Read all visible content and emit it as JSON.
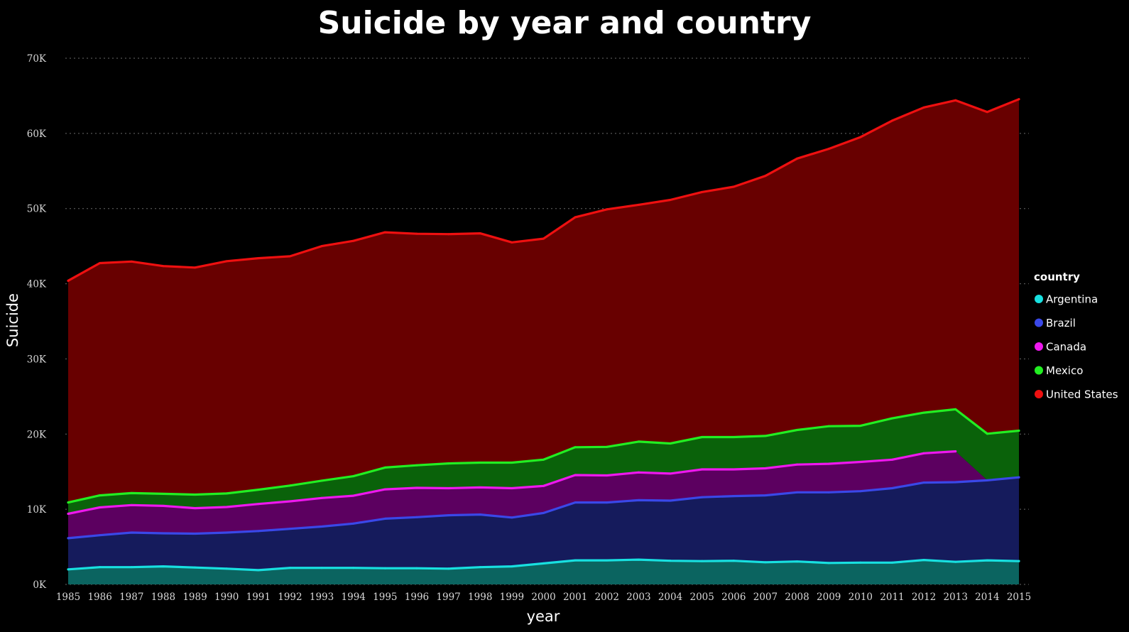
{
  "chart_data": {
    "type": "area",
    "stacked": true,
    "title": "Suicide by year and country",
    "xlabel": "year",
    "ylabel": "Suicide",
    "ylim": [
      0,
      70000
    ],
    "y_ticks": [
      0,
      10000,
      20000,
      30000,
      40000,
      50000,
      60000,
      70000
    ],
    "y_tick_labels": [
      "0K",
      "10K",
      "20K",
      "30K",
      "40K",
      "50K",
      "60K",
      "70K"
    ],
    "grid": true,
    "legend_title": "country",
    "legend_position": "right",
    "x": [
      "1985",
      "1986",
      "1987",
      "1988",
      "1989",
      "1990",
      "1991",
      "1992",
      "1993",
      "1994",
      "1995",
      "1996",
      "1997",
      "1998",
      "1999",
      "2000",
      "2001",
      "2002",
      "2003",
      "2004",
      "2005",
      "2006",
      "2007",
      "2008",
      "2009",
      "2010",
      "2011",
      "2012",
      "2013",
      "2014",
      "2015"
    ],
    "series": [
      {
        "name": "Argentina",
        "line_color": "#18e0e0",
        "fill_color": "#0b6460",
        "values": [
          2000,
          2300,
          2300,
          2400,
          2250,
          2100,
          1900,
          2200,
          2200,
          2200,
          2150,
          2150,
          2100,
          2300,
          2400,
          2800,
          3200,
          3200,
          3300,
          3150,
          3100,
          3150,
          2950,
          3050,
          2850,
          2900,
          2900,
          3250,
          3000,
          3200,
          3100
        ]
      },
      {
        "name": "Brazil",
        "line_color": "#3a48e8",
        "fill_color": "#151b5c",
        "values": [
          4150,
          4250,
          4600,
          4400,
          4500,
          4800,
          5200,
          5200,
          5500,
          5900,
          6600,
          6800,
          7100,
          7000,
          6500,
          6700,
          7700,
          7700,
          7900,
          8000,
          8500,
          8600,
          8900,
          9200,
          9400,
          9500,
          9900,
          10300,
          10600,
          10650,
          11150
        ]
      },
      {
        "name": "Canada",
        "line_color": "#ee18ee",
        "fill_color": "#5c0060",
        "values": [
          3250,
          3700,
          3650,
          3650,
          3400,
          3400,
          3600,
          3650,
          3800,
          3700,
          3900,
          3900,
          3600,
          3600,
          3900,
          3600,
          3650,
          3600,
          3700,
          3600,
          3700,
          3550,
          3600,
          3700,
          3800,
          3900,
          3800,
          3900,
          4100,
          0,
          0
        ]
      },
      {
        "name": "Mexico",
        "line_color": "#22ee22",
        "fill_color": "#0a620a",
        "values": [
          1500,
          1600,
          1600,
          1600,
          1800,
          1800,
          1900,
          2100,
          2300,
          2600,
          2900,
          3000,
          3300,
          3300,
          3400,
          3500,
          3700,
          3800,
          4100,
          4000,
          4300,
          4300,
          4300,
          4600,
          5000,
          4800,
          5500,
          5400,
          5600,
          6200,
          6200
        ]
      },
      {
        "name": "United States",
        "line_color": "#ee1010",
        "fill_color": "#680000",
        "values": [
          29500,
          30900,
          30800,
          30300,
          30200,
          30900,
          30800,
          30500,
          31200,
          31300,
          31300,
          30800,
          30500,
          30500,
          29300,
          29400,
          30600,
          31600,
          31500,
          32400,
          32600,
          33300,
          34600,
          36100,
          36900,
          38400,
          39600,
          40600,
          41100,
          42800,
          44100
        ]
      }
    ]
  }
}
